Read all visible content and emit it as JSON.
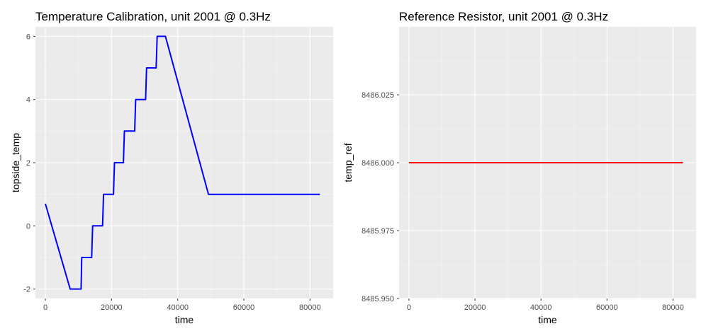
{
  "chart_data": [
    {
      "type": "line",
      "title": "Temperature Calibration, unit 2001 @ 0.3Hz",
      "xlabel": "time",
      "ylabel": "topside_temp",
      "xlim": [
        -3000,
        87000
      ],
      "ylim": [
        -2.3,
        6.3
      ],
      "x_ticks": [
        0,
        20000,
        40000,
        60000,
        80000
      ],
      "x_tick_labels": [
        "0",
        "20000",
        "40000",
        "60000",
        "80000"
      ],
      "y_ticks": [
        -2,
        0,
        2,
        4,
        6
      ],
      "y_tick_labels": [
        "-2",
        "0",
        "2",
        "4",
        "6"
      ],
      "grid": true,
      "background": "#ebebeb",
      "line_color": "#0000ff",
      "series": [
        {
          "x": [
            0,
            7500,
            10800,
            11000,
            14000,
            14300,
            17300,
            17600,
            20600,
            20900,
            23600,
            23900,
            27000,
            27300,
            30300,
            30600,
            33500,
            33800,
            36300,
            49300,
            83000
          ],
          "y": [
            0.7,
            -2,
            -2,
            -1,
            -1,
            0,
            0,
            1,
            1,
            2,
            2,
            3,
            3,
            4,
            4,
            5,
            5,
            6,
            6,
            1,
            1
          ]
        }
      ]
    },
    {
      "type": "line",
      "title": "Reference Resistor, unit 2001 @ 0.3Hz",
      "xlabel": "time",
      "ylabel": "temp_ref",
      "xlim": [
        -3000,
        87000
      ],
      "ylim": [
        8485.95,
        8486.05
      ],
      "x_ticks": [
        0,
        20000,
        40000,
        60000,
        80000
      ],
      "x_tick_labels": [
        "0",
        "20000",
        "40000",
        "60000",
        "80000"
      ],
      "y_ticks": [
        8485.95,
        8485.975,
        8486.0,
        8486.025
      ],
      "y_tick_labels": [
        "8485.950",
        "8485.975",
        "8486.000",
        "8486.025"
      ],
      "grid": true,
      "background": "#ebebeb",
      "line_color": "#ff0000",
      "series": [
        {
          "x": [
            0,
            83000
          ],
          "y": [
            8486.0,
            8486.0
          ]
        }
      ]
    }
  ]
}
